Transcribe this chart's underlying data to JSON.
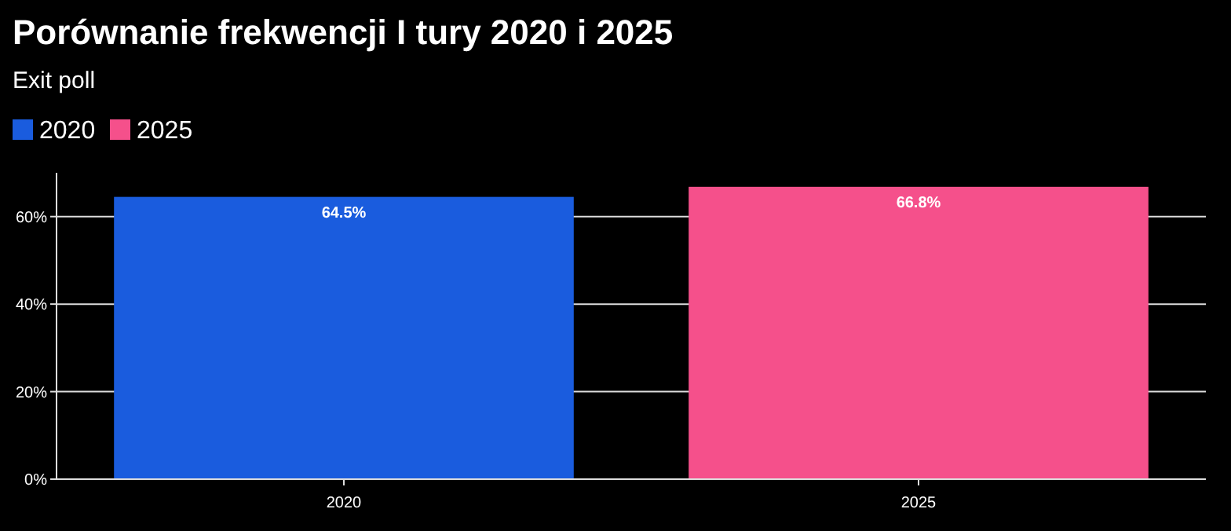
{
  "chart_data": {
    "type": "bar",
    "title": "Porównanie frekwencji I tury 2020 i 2025",
    "subtitle": "Exit poll",
    "categories": [
      "2020",
      "2025"
    ],
    "stacked": true,
    "series": [
      {
        "name": "2020",
        "color": "#1a5cde",
        "values": [
          64.5,
          null
        ],
        "value_labels": [
          "64.5%",
          null
        ]
      },
      {
        "name": "2025",
        "color": "#f5508b",
        "values": [
          null,
          66.8
        ],
        "value_labels": [
          null,
          "66.8%"
        ]
      }
    ],
    "ylim": [
      0,
      70
    ],
    "yticks": [
      {
        "value": 0,
        "label": "0%"
      },
      {
        "value": 20,
        "label": "20%"
      },
      {
        "value": 40,
        "label": "40%"
      },
      {
        "value": 60,
        "label": "60%"
      }
    ],
    "grid": "y",
    "legend": "top left"
  }
}
